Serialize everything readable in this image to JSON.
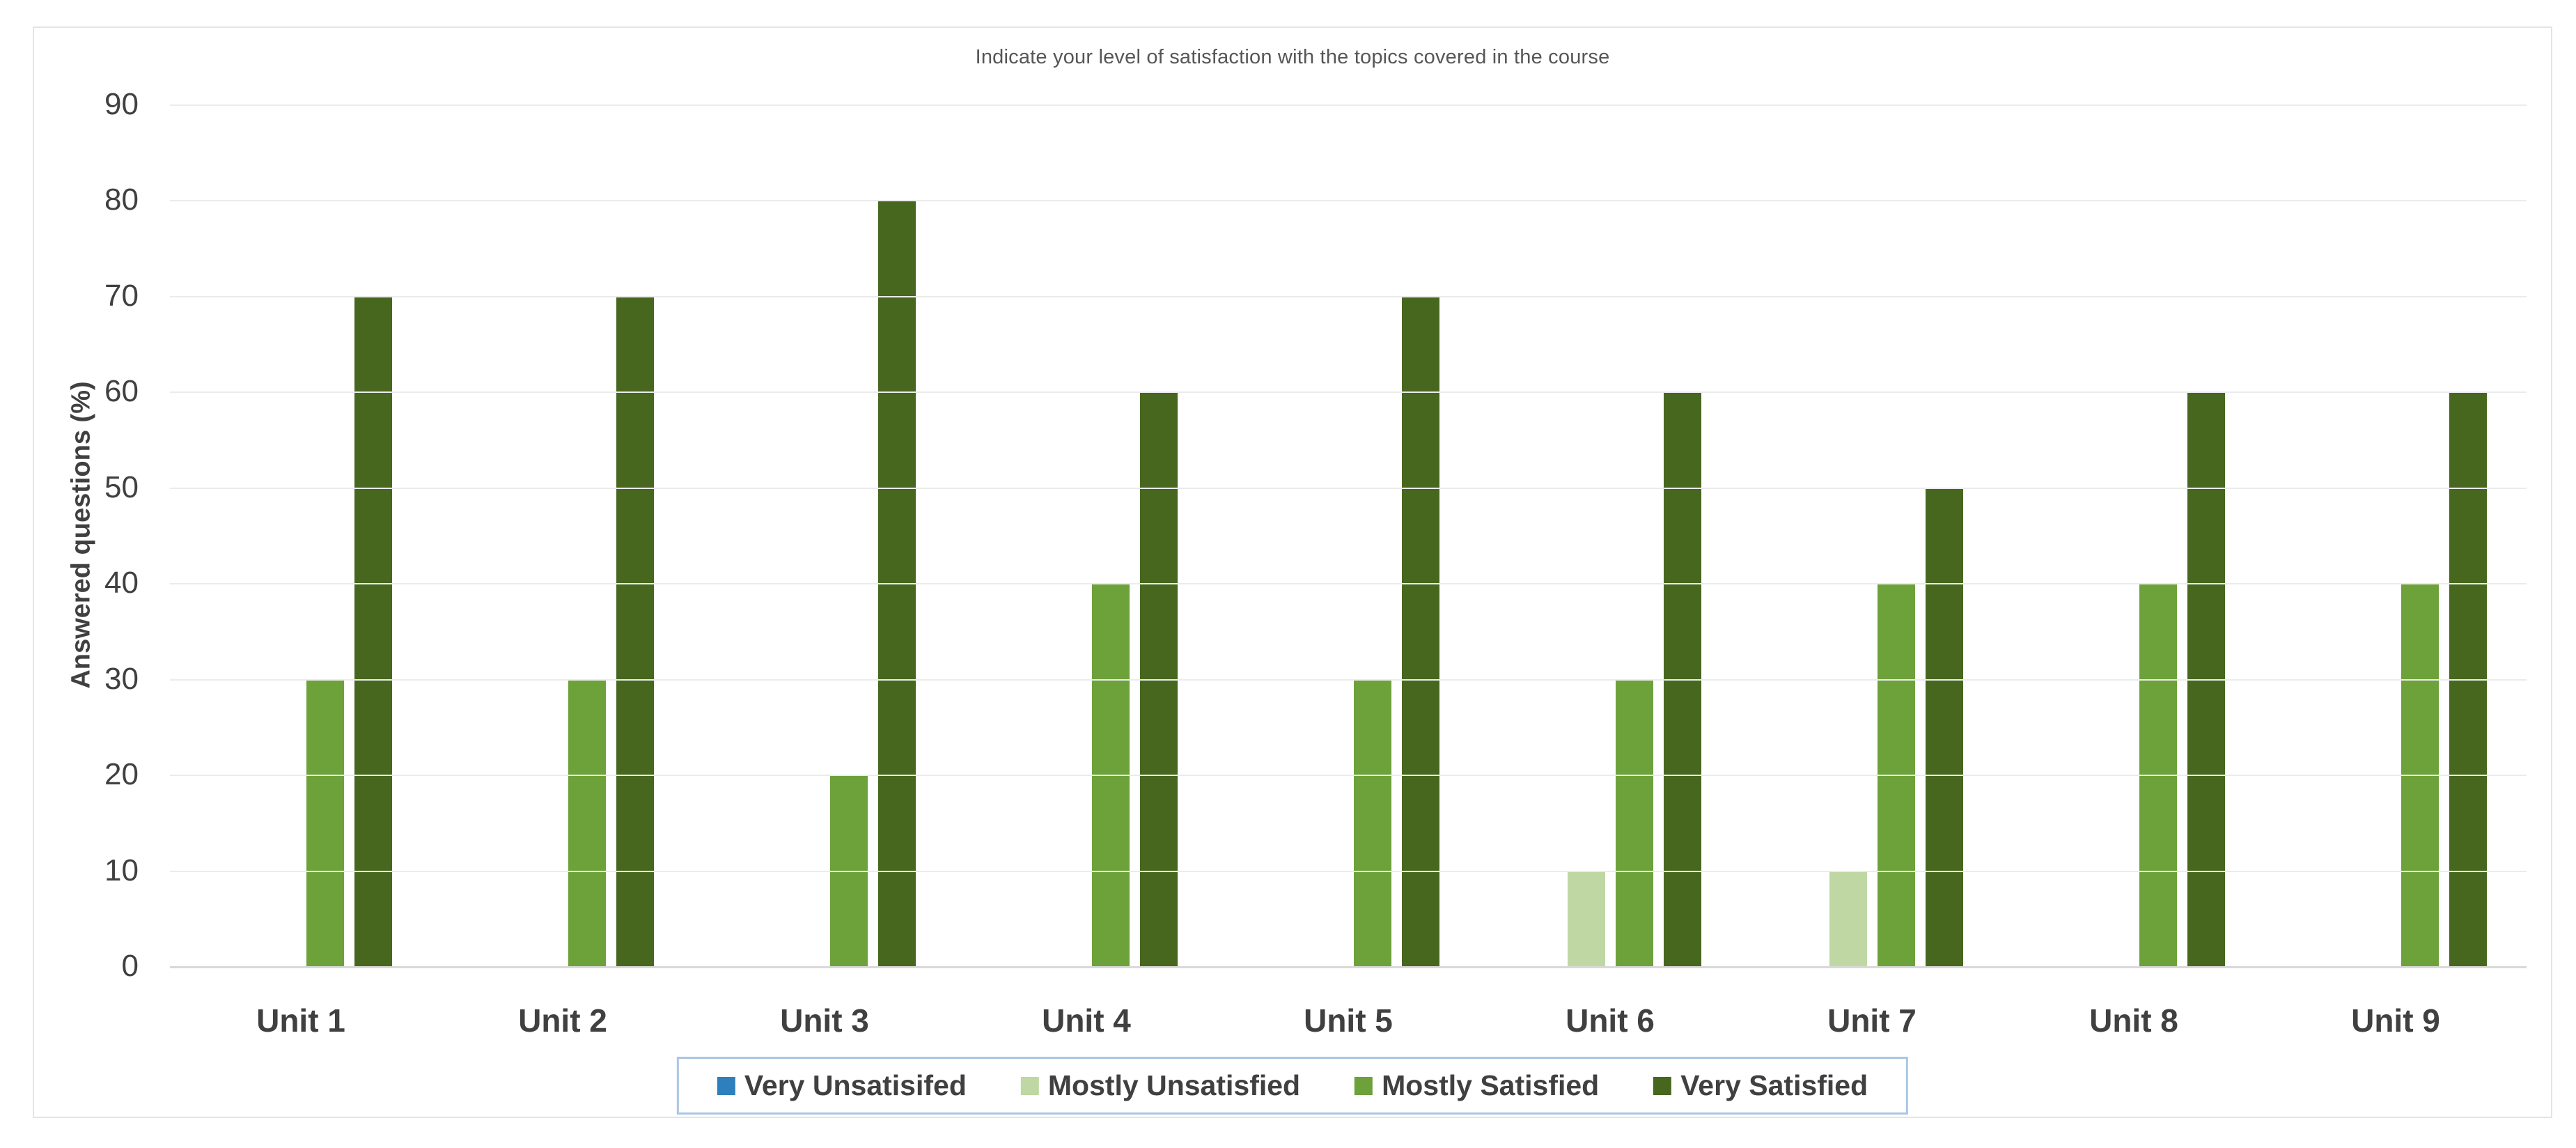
{
  "chart_data": {
    "type": "bar",
    "variant": "clustered-vertical",
    "title": "Indicate your level of satisfaction with the topics covered in the course",
    "xlabel": "",
    "ylabel": "Answered questions (%)",
    "categories": [
      "Unit 1",
      "Unit 2",
      "Unit 3",
      "Unit 4",
      "Unit 5",
      "Unit 6",
      "Unit 7",
      "Unit 8",
      "Unit 9"
    ],
    "series": [
      {
        "name": "Very Unsatisifed",
        "color": "#2E80BD",
        "values": [
          0,
          0,
          0,
          0,
          0,
          0,
          0,
          0,
          0
        ]
      },
      {
        "name": "Mostly Unsatisfied",
        "color": "#BFD8A3",
        "values": [
          0,
          0,
          0,
          0,
          0,
          10,
          10,
          0,
          0
        ]
      },
      {
        "name": "Mostly Satisfied",
        "color": "#6DA23A",
        "values": [
          30,
          30,
          20,
          40,
          30,
          30,
          40,
          40,
          40
        ]
      },
      {
        "name": "Very Satisfied",
        "color": "#47671F",
        "values": [
          70,
          70,
          80,
          60,
          70,
          60,
          50,
          60,
          60
        ]
      }
    ],
    "ylim": [
      0,
      90
    ],
    "yticks": [
      0,
      10,
      20,
      30,
      40,
      50,
      60,
      70,
      80,
      90
    ],
    "grid": true,
    "legend_position": "bottom"
  },
  "colors": {
    "gridline": "#EBEBEB",
    "baseline": "#D9D9D9",
    "card_border": "#E4E4E4",
    "legend_border": "#A9C7E6",
    "title_text": "#565656",
    "axis_text": "#404040"
  }
}
